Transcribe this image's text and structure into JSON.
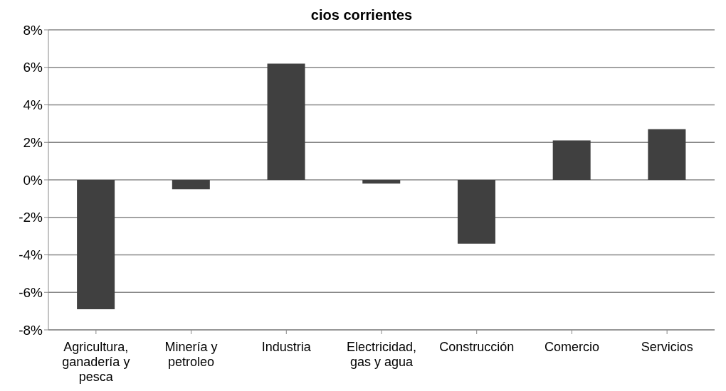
{
  "chart_data": {
    "type": "bar",
    "title": "cios corrientes",
    "categories": [
      "Agricultura, ganadería y pesca",
      "Minería y petroleo",
      "Industria",
      "Electricidad, gas y agua",
      "Construcción",
      "Comercio",
      "Servicios"
    ],
    "values": [
      -6.9,
      -0.5,
      6.2,
      -0.2,
      -3.4,
      2.1,
      2.7
    ],
    "color": "#404040",
    "ylim": [
      -8,
      8
    ],
    "yticks": [
      {
        "value": -8,
        "label": "-8%"
      },
      {
        "value": -6,
        "label": "-6%"
      },
      {
        "value": -4,
        "label": "-4%"
      },
      {
        "value": -2,
        "label": "-2%"
      },
      {
        "value": 0,
        "label": "0%"
      },
      {
        "value": 2,
        "label": "2%"
      },
      {
        "value": 4,
        "label": "4%"
      },
      {
        "value": 6,
        "label": "6%"
      },
      {
        "value": 8,
        "label": "8%"
      }
    ],
    "grid": "y",
    "legend": false
  }
}
